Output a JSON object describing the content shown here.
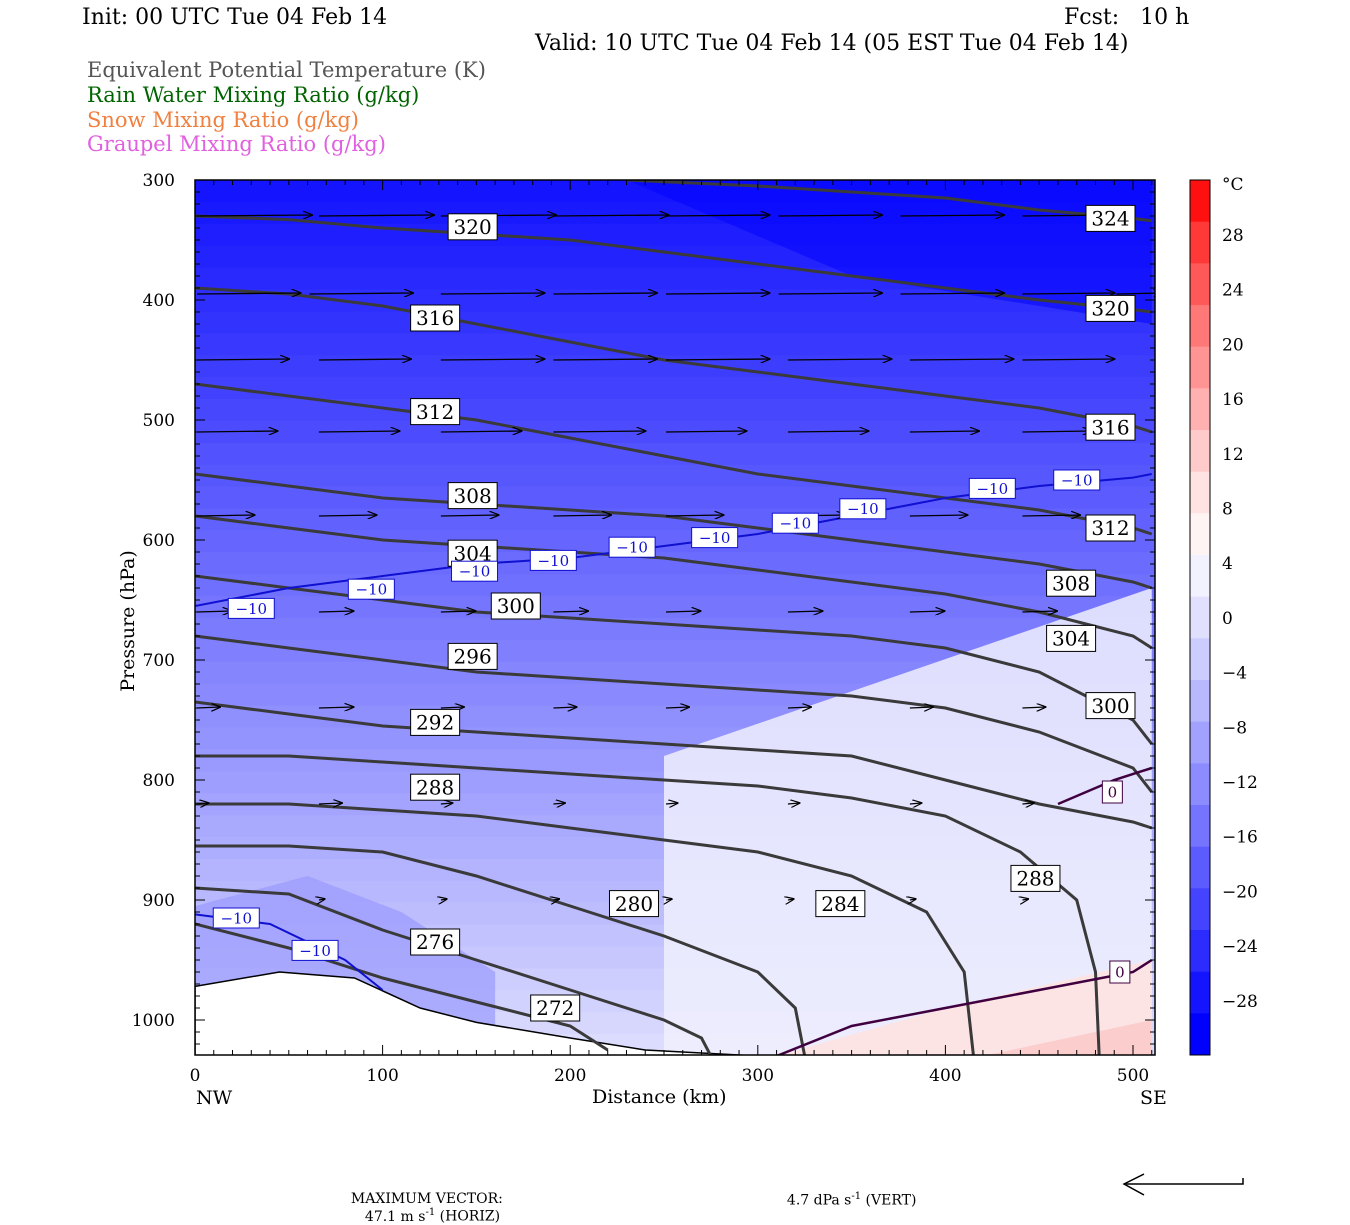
{
  "header": {
    "init": "Init: 00 UTC Tue 04 Feb 14",
    "fcst": "Fcst:   10 h",
    "valid": "Valid: 10 UTC Tue 04 Feb 14 (05 EST Tue 04 Feb 14)"
  },
  "legend": [
    {
      "text": "Equivalent Potential Temperature (K)",
      "color": "#555555"
    },
    {
      "text": "Rain Water Mixing Ratio (g/kg)",
      "color": "#006400"
    },
    {
      "text": "Snow Mixing Ratio (g/kg)",
      "color": "#f08040"
    },
    {
      "text": "Graupel Mixing Ratio (g/kg)",
      "color": "#e060e0"
    }
  ],
  "footer": {
    "prefix": "MAXIMUM VECTOR:",
    "horiz": "47.1 m s",
    "horiz_suffix": " (HORIZ)",
    "vert": "4.7 dPa s",
    "vert_suffix": " (VERT)",
    "exponent": "-1"
  },
  "chart_data": {
    "type": "contour",
    "xlabel": "Distance (km)",
    "ylabel": "Pressure (hPa)",
    "xlim": [
      0,
      510
    ],
    "ylim": [
      300,
      1030
    ],
    "y_log": true,
    "x_ticks": [
      0,
      100,
      200,
      300,
      400,
      500
    ],
    "y_ticks": [
      300,
      400,
      500,
      600,
      700,
      800,
      900,
      1000
    ],
    "x_end_labels": {
      "left": "NW",
      "right": "SE"
    },
    "colorbar": {
      "unit": "°C",
      "labels": [
        "28",
        "24",
        "20",
        "16",
        "12",
        "8",
        "4",
        "0",
        "−4",
        "−8",
        "−12",
        "−16",
        "−20",
        "−24",
        "−28"
      ],
      "colors": [
        "#ff1010",
        "#ff3838",
        "#ff5858",
        "#ff7878",
        "#ff9494",
        "#ffb0b0",
        "#ffcaca",
        "#ffe2e2",
        "#fff4f4",
        "#f2f2fe",
        "#e0e0fe",
        "#ccccfe",
        "#b8b8fe",
        "#a2a2fe",
        "#8c8cfe",
        "#7474fe",
        "#5c5cfe",
        "#4444fe",
        "#2c2cfe",
        "#1414fe",
        "#0000fe"
      ]
    },
    "temperature_shading": [
      {
        "x": [
          0,
          510
        ],
        "levels": [
          [
            300,
            -34
          ],
          [
            400,
            -28
          ],
          [
            500,
            -22
          ],
          [
            600,
            -16
          ],
          [
            700,
            -12
          ],
          [
            800,
            -9
          ],
          [
            900,
            -11
          ],
          [
            1000,
            -10
          ]
        ]
      },
      {
        "x_region": [
          330,
          510
        ],
        "p_region": [
          700,
          1030
        ],
        "note": "near-zero band"
      }
    ],
    "theta_e": [
      {
        "value": 272,
        "x": [
          0,
          50,
          100,
          150,
          200,
          220
        ],
        "p": [
          920,
          940,
          965,
          985,
          1005,
          1025
        ]
      },
      {
        "value": 276,
        "x": [
          0,
          50,
          100,
          150,
          200,
          250,
          270,
          275
        ],
        "p": [
          890,
          895,
          925,
          950,
          975,
          1000,
          1015,
          1030
        ]
      },
      {
        "value": 280,
        "x": [
          0,
          50,
          100,
          150,
          200,
          250,
          300,
          320,
          325
        ],
        "p": [
          855,
          855,
          860,
          880,
          905,
          930,
          960,
          990,
          1030
        ]
      },
      {
        "value": 284,
        "x": [
          0,
          50,
          100,
          150,
          200,
          250,
          300,
          350,
          390,
          410,
          415
        ],
        "p": [
          820,
          820,
          825,
          830,
          840,
          850,
          860,
          880,
          910,
          960,
          1030
        ]
      },
      {
        "value": 288,
        "x": [
          0,
          50,
          100,
          150,
          200,
          250,
          300,
          350,
          400,
          440,
          470,
          480,
          482
        ],
        "p": [
          780,
          780,
          785,
          790,
          795,
          800,
          805,
          815,
          830,
          860,
          900,
          960,
          1030
        ]
      },
      {
        "value": 292,
        "x": [
          0,
          50,
          100,
          150,
          200,
          250,
          300,
          350,
          400,
          450,
          500,
          510
        ],
        "p": [
          735,
          745,
          755,
          760,
          765,
          770,
          775,
          780,
          800,
          820,
          835,
          840
        ]
      },
      {
        "value": 296,
        "x": [
          0,
          50,
          100,
          150,
          200,
          250,
          300,
          350,
          400,
          450,
          500,
          510
        ],
        "p": [
          680,
          690,
          700,
          710,
          715,
          720,
          725,
          730,
          740,
          760,
          790,
          810
        ]
      },
      {
        "value": 300,
        "x": [
          0,
          50,
          100,
          150,
          200,
          250,
          300,
          350,
          400,
          450,
          500,
          510
        ],
        "p": [
          630,
          640,
          650,
          660,
          665,
          670,
          675,
          680,
          690,
          710,
          750,
          770
        ]
      },
      {
        "value": 304,
        "x": [
          0,
          50,
          100,
          150,
          200,
          250,
          300,
          350,
          400,
          450,
          500,
          510
        ],
        "p": [
          580,
          590,
          600,
          605,
          610,
          615,
          625,
          635,
          645,
          660,
          680,
          690
        ]
      },
      {
        "value": 308,
        "x": [
          0,
          50,
          100,
          150,
          200,
          250,
          300,
          350,
          400,
          450,
          500,
          510
        ],
        "p": [
          545,
          555,
          565,
          570,
          575,
          580,
          590,
          600,
          610,
          620,
          635,
          640
        ]
      },
      {
        "value": 312,
        "x": [
          0,
          50,
          100,
          150,
          200,
          250,
          300,
          350,
          400,
          450,
          500,
          510
        ],
        "p": [
          470,
          480,
          490,
          500,
          515,
          530,
          545,
          555,
          565,
          575,
          590,
          595
        ]
      },
      {
        "value": 316,
        "x": [
          0,
          50,
          100,
          150,
          200,
          250,
          300,
          350,
          400,
          450,
          500,
          510
        ],
        "p": [
          390,
          395,
          405,
          420,
          435,
          450,
          460,
          470,
          480,
          490,
          505,
          510
        ]
      },
      {
        "value": 320,
        "x": [
          0,
          50,
          100,
          150,
          200,
          250,
          300,
          350,
          400,
          450,
          500,
          510
        ],
        "p": [
          330,
          333,
          340,
          345,
          350,
          360,
          370,
          380,
          390,
          400,
          408,
          410
        ]
      },
      {
        "value": 324,
        "x": [
          230,
          300,
          350,
          400,
          450,
          500,
          510
        ],
        "p": [
          300,
          305,
          310,
          315,
          325,
          332,
          334
        ]
      }
    ],
    "isotherm_minus10": {
      "value": -10,
      "x": [
        0,
        50,
        100,
        150,
        200,
        250,
        300,
        350,
        400,
        450,
        500,
        510
      ],
      "p": [
        655,
        640,
        630,
        620,
        615,
        605,
        595,
        580,
        565,
        555,
        548,
        545
      ]
    },
    "isotherm_minus10_low": {
      "value": -10,
      "x": [
        0,
        40,
        80,
        100
      ],
      "p": [
        912,
        920,
        950,
        975
      ]
    },
    "isotherm_zero_upper": {
      "value": 0,
      "x": [
        460,
        490,
        510
      ],
      "p": [
        820,
        800,
        790
      ]
    },
    "isotherm_zero_lower": {
      "value": 0,
      "x": [
        310,
        350,
        400,
        450,
        500,
        510
      ],
      "p": [
        1030,
        1005,
        990,
        975,
        960,
        950
      ]
    },
    "wind_vectors": [
      {
        "p": 330,
        "x": [
          0,
          65,
          130,
          190,
          250,
          310,
          375,
          440
        ],
        "u": [
          1.0,
          1.0,
          1.0,
          1.0,
          0.9,
          0.9,
          0.9,
          0.8
        ]
      },
      {
        "p": 395,
        "x": [
          0,
          60,
          130,
          190,
          250,
          310,
          375,
          440,
          490
        ],
        "u": [
          0.9,
          0.9,
          0.9,
          0.9,
          0.9,
          0.9,
          0.9,
          0.8,
          0.4
        ]
      },
      {
        "p": 450,
        "x": [
          0,
          65,
          130,
          190,
          250,
          315,
          380,
          440
        ],
        "u": [
          0.8,
          0.8,
          0.9,
          0.9,
          0.9,
          0.9,
          0.9,
          0.8
        ]
      },
      {
        "p": 510,
        "x": [
          0,
          65,
          130,
          190,
          250,
          315,
          380,
          440
        ],
        "u": [
          0.7,
          0.7,
          0.7,
          0.8,
          0.7,
          0.7,
          0.6,
          0.6
        ]
      },
      {
        "p": 580,
        "x": [
          0,
          65,
          130,
          190,
          250,
          315,
          380,
          440
        ],
        "u": [
          0.5,
          0.5,
          0.5,
          0.5,
          0.5,
          0.5,
          0.5,
          0.5
        ]
      },
      {
        "p": 660,
        "x": [
          0,
          65,
          130,
          190,
          250,
          315,
          380,
          440
        ],
        "u": [
          0.3,
          0.3,
          0.3,
          0.3,
          0.3,
          0.3,
          0.3,
          0.3
        ]
      },
      {
        "p": 740,
        "x": [
          0,
          65,
          130,
          190,
          250,
          315,
          380,
          440
        ],
        "u": [
          0.2,
          0.3,
          0.2,
          0.2,
          0.2,
          0.2,
          0.2,
          0.2
        ]
      },
      {
        "p": 820,
        "x": [
          0,
          65,
          130,
          190,
          250,
          315,
          380,
          440
        ],
        "u": [
          0.1,
          0.2,
          0.1,
          0.1,
          0.1,
          0.1,
          0.1,
          0.1
        ]
      },
      {
        "p": 900,
        "x": [
          65,
          130,
          190,
          250,
          315,
          380,
          440
        ],
        "u": [
          0.05,
          0.05,
          0.05,
          0.05,
          0.05,
          0.05,
          0.05
        ]
      }
    ]
  }
}
